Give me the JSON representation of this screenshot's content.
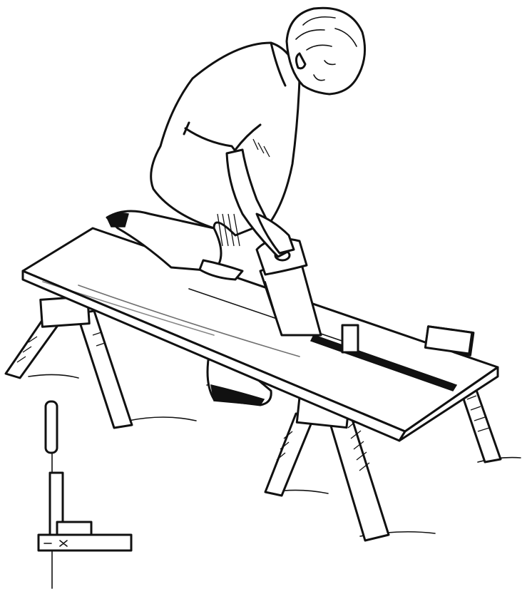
{
  "illustration": {
    "style": "black-and-white pen line drawing",
    "colors": {
      "ink": "#111111",
      "paper": "#ffffff"
    }
  }
}
